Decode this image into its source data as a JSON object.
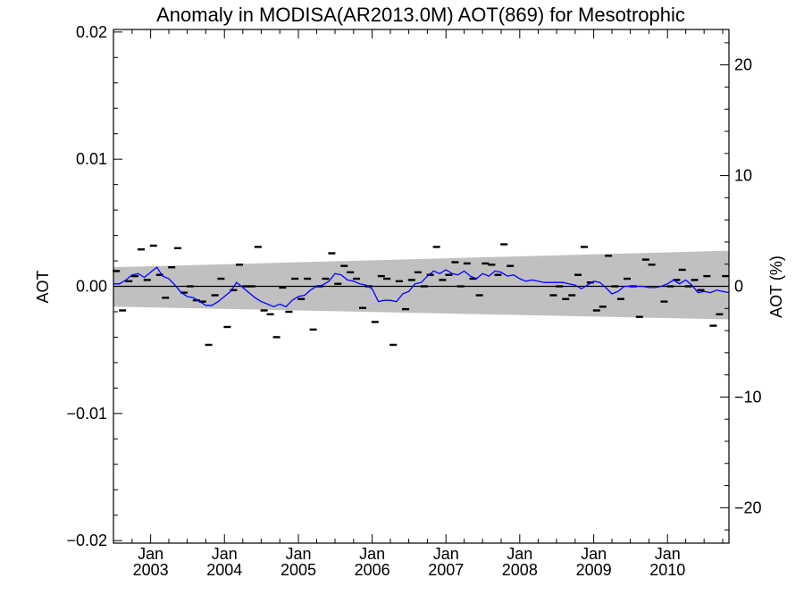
{
  "chart_data": {
    "type": "scatter",
    "title": "Anomaly in MODISA(AR2013.0M) AOT(869) for Mesotrophic",
    "ylabel": "AOT",
    "ylabel_right": "AOT (%)",
    "xlim": [
      "2002-07-01",
      "2010-11-01"
    ],
    "ylim": [
      -0.0202,
      0.0202
    ],
    "ylim_right": [
      -23.2,
      23.2
    ],
    "yticks": [
      {
        "value": 0.02,
        "label": "0.02"
      },
      {
        "value": 0.01,
        "label": "0.01"
      },
      {
        "value": 0.0,
        "label": "0.00"
      },
      {
        "value": -0.01,
        "label": "−0.01"
      },
      {
        "value": -0.02,
        "label": "−0.02"
      }
    ],
    "yticks_right": [
      {
        "value": 20,
        "label": "20"
      },
      {
        "value": 10,
        "label": "10"
      },
      {
        "value": 0,
        "label": "0"
      },
      {
        "value": -10,
        "label": "−10"
      },
      {
        "value": -20,
        "label": "−20"
      }
    ],
    "xticks": [
      {
        "date": "2003-01-01",
        "month": "Jan",
        "year": "2003"
      },
      {
        "date": "2004-01-01",
        "month": "Jan",
        "year": "2004"
      },
      {
        "date": "2005-01-01",
        "month": "Jan",
        "year": "2005"
      },
      {
        "date": "2006-01-01",
        "month": "Jan",
        "year": "2006"
      },
      {
        "date": "2007-01-01",
        "month": "Jan",
        "year": "2007"
      },
      {
        "date": "2008-01-01",
        "month": "Jan",
        "year": "2008"
      },
      {
        "date": "2009-01-01",
        "month": "Jan",
        "year": "2009"
      },
      {
        "date": "2010-01-01",
        "month": "Jan",
        "year": "2010"
      }
    ],
    "band": {
      "color": "#c0c0c0",
      "start": {
        "date": "2002-07-01",
        "upper": 0.0015,
        "lower": -0.0016
      },
      "end": {
        "date": "2010-11-01",
        "upper": 0.0028,
        "lower": -0.0026
      }
    },
    "zero_line": {
      "value": 0.0,
      "color": "#000000"
    },
    "series": [
      {
        "kind": "points",
        "color": "#000000",
        "points": [
          {
            "x": "2002-07-15",
            "y": 0.0012
          },
          {
            "x": "2002-08-15",
            "y": -0.0019
          },
          {
            "x": "2002-09-15",
            "y": 0.0004
          },
          {
            "x": "2002-10-15",
            "y": 0.0008
          },
          {
            "x": "2002-11-15",
            "y": 0.0029
          },
          {
            "x": "2002-12-15",
            "y": 0.0005
          },
          {
            "x": "2003-01-15",
            "y": 0.0032
          },
          {
            "x": "2003-02-15",
            "y": 0.0009
          },
          {
            "x": "2003-03-15",
            "y": -0.0009
          },
          {
            "x": "2003-04-15",
            "y": 0.0015
          },
          {
            "x": "2003-05-15",
            "y": 0.003
          },
          {
            "x": "2003-06-15",
            "y": -0.0005
          },
          {
            "x": "2003-07-15",
            "y": 0.0
          },
          {
            "x": "2003-08-15",
            "y": -0.0011
          },
          {
            "x": "2003-09-15",
            "y": -0.0012
          },
          {
            "x": "2003-10-15",
            "y": -0.0046
          },
          {
            "x": "2003-11-15",
            "y": -0.0007
          },
          {
            "x": "2003-12-15",
            "y": 0.0006
          },
          {
            "x": "2004-01-15",
            "y": -0.0032
          },
          {
            "x": "2004-02-15",
            "y": -0.0003
          },
          {
            "x": "2004-03-15",
            "y": 0.0017
          },
          {
            "x": "2004-04-15",
            "y": 0.0
          },
          {
            "x": "2004-05-15",
            "y": 0.0
          },
          {
            "x": "2004-06-15",
            "y": 0.0031
          },
          {
            "x": "2004-07-15",
            "y": -0.0019
          },
          {
            "x": "2004-08-15",
            "y": -0.0022
          },
          {
            "x": "2004-09-15",
            "y": -0.004
          },
          {
            "x": "2004-10-15",
            "y": -0.0001
          },
          {
            "x": "2004-11-15",
            "y": -0.002
          },
          {
            "x": "2004-12-15",
            "y": 0.0006
          },
          {
            "x": "2005-01-15",
            "y": -0.001
          },
          {
            "x": "2005-02-15",
            "y": 0.0006
          },
          {
            "x": "2005-03-15",
            "y": -0.0034
          },
          {
            "x": "2005-04-15",
            "y": 0.0
          },
          {
            "x": "2005-05-15",
            "y": 0.0006
          },
          {
            "x": "2005-06-15",
            "y": 0.0026
          },
          {
            "x": "2005-07-15",
            "y": 0.0002
          },
          {
            "x": "2005-08-15",
            "y": 0.0016
          },
          {
            "x": "2005-09-15",
            "y": 0.0011
          },
          {
            "x": "2005-10-15",
            "y": 0.0006
          },
          {
            "x": "2005-11-15",
            "y": -0.0017
          },
          {
            "x": "2005-12-15",
            "y": 0.0
          },
          {
            "x": "2006-01-15",
            "y": -0.0028
          },
          {
            "x": "2006-02-15",
            "y": 0.0008
          },
          {
            "x": "2006-03-15",
            "y": 0.0006
          },
          {
            "x": "2006-04-15",
            "y": -0.0046
          },
          {
            "x": "2006-05-15",
            "y": 0.0004
          },
          {
            "x": "2006-06-15",
            "y": -0.0018
          },
          {
            "x": "2006-07-15",
            "y": 0.0005
          },
          {
            "x": "2006-08-15",
            "y": 0.0011
          },
          {
            "x": "2006-09-15",
            "y": 0.0
          },
          {
            "x": "2006-10-15",
            "y": 0.0009
          },
          {
            "x": "2006-11-15",
            "y": 0.0031
          },
          {
            "x": "2006-12-15",
            "y": 0.0005
          },
          {
            "x": "2007-01-15",
            "y": 0.0009
          },
          {
            "x": "2007-02-15",
            "y": 0.0019
          },
          {
            "x": "2007-03-15",
            "y": 0.0
          },
          {
            "x": "2007-04-15",
            "y": 0.0018
          },
          {
            "x": "2007-05-15",
            "y": 0.0006
          },
          {
            "x": "2007-06-15",
            "y": -0.0007
          },
          {
            "x": "2007-07-15",
            "y": 0.0018
          },
          {
            "x": "2007-08-15",
            "y": 0.0017
          },
          {
            "x": "2007-09-15",
            "y": 0.0009
          },
          {
            "x": "2007-10-15",
            "y": 0.0033
          },
          {
            "x": "2007-11-15",
            "y": 0.0016
          },
          {
            "x": "2008-06-15",
            "y": -0.0007
          },
          {
            "x": "2008-07-15",
            "y": 0.0
          },
          {
            "x": "2008-08-15",
            "y": -0.001
          },
          {
            "x": "2008-09-15",
            "y": -0.0007
          },
          {
            "x": "2008-10-15",
            "y": 0.0009
          },
          {
            "x": "2008-11-15",
            "y": 0.0031
          },
          {
            "x": "2008-12-15",
            "y": 0.0003
          },
          {
            "x": "2009-01-15",
            "y": -0.0019
          },
          {
            "x": "2009-02-15",
            "y": -0.0016
          },
          {
            "x": "2009-03-15",
            "y": 0.0024
          },
          {
            "x": "2009-04-15",
            "y": 0.0
          },
          {
            "x": "2009-05-15",
            "y": -0.001
          },
          {
            "x": "2009-06-15",
            "y": 0.0006
          },
          {
            "x": "2009-07-15",
            "y": 0.0
          },
          {
            "x": "2009-08-15",
            "y": -0.0024
          },
          {
            "x": "2009-09-15",
            "y": 0.0021
          },
          {
            "x": "2009-10-15",
            "y": 0.0017
          },
          {
            "x": "2009-12-15",
            "y": -0.0012
          },
          {
            "x": "2010-01-15",
            "y": 0.0
          },
          {
            "x": "2010-02-15",
            "y": 0.0005
          },
          {
            "x": "2010-03-15",
            "y": 0.0013
          },
          {
            "x": "2010-04-15",
            "y": 0.0
          },
          {
            "x": "2010-05-15",
            "y": 0.0005
          },
          {
            "x": "2010-06-15",
            "y": -0.0003
          },
          {
            "x": "2010-07-15",
            "y": 0.0008
          },
          {
            "x": "2010-08-15",
            "y": -0.0031
          },
          {
            "x": "2010-09-15",
            "y": -0.0022
          },
          {
            "x": "2010-10-15",
            "y": 0.0008
          }
        ]
      },
      {
        "kind": "line",
        "color": "#0000ff",
        "points": [
          {
            "x": "2002-07-01",
            "y": 0.0002
          },
          {
            "x": "2002-08-01",
            "y": 0.0002
          },
          {
            "x": "2002-09-01",
            "y": 0.0005
          },
          {
            "x": "2002-10-01",
            "y": 0.0009
          },
          {
            "x": "2002-11-01",
            "y": 0.001
          },
          {
            "x": "2002-12-01",
            "y": 0.0007
          },
          {
            "x": "2003-01-01",
            "y": 0.0011
          },
          {
            "x": "2003-02-01",
            "y": 0.0015
          },
          {
            "x": "2003-03-01",
            "y": 0.0008
          },
          {
            "x": "2003-04-01",
            "y": 0.0006
          },
          {
            "x": "2003-05-01",
            "y": 0.0001
          },
          {
            "x": "2003-06-01",
            "y": -0.0005
          },
          {
            "x": "2003-07-01",
            "y": -0.0008
          },
          {
            "x": "2003-08-01",
            "y": -0.0009
          },
          {
            "x": "2003-09-01",
            "y": -0.0012
          },
          {
            "x": "2003-10-01",
            "y": -0.0015
          },
          {
            "x": "2003-11-01",
            "y": -0.0015
          },
          {
            "x": "2003-12-01",
            "y": -0.0012
          },
          {
            "x": "2004-01-01",
            "y": -0.0008
          },
          {
            "x": "2004-02-01",
            "y": -0.0004
          },
          {
            "x": "2004-03-01",
            "y": 0.0003
          },
          {
            "x": "2004-04-01",
            "y": -0.0001
          },
          {
            "x": "2004-05-01",
            "y": -0.0005
          },
          {
            "x": "2004-06-01",
            "y": -0.0009
          },
          {
            "x": "2004-07-01",
            "y": -0.0012
          },
          {
            "x": "2004-08-01",
            "y": -0.0014
          },
          {
            "x": "2004-09-01",
            "y": -0.0016
          },
          {
            "x": "2004-10-01",
            "y": -0.0014
          },
          {
            "x": "2004-11-01",
            "y": -0.0016
          },
          {
            "x": "2004-12-01",
            "y": -0.0011
          },
          {
            "x": "2005-01-01",
            "y": -0.0008
          },
          {
            "x": "2005-02-01",
            "y": -0.0007
          },
          {
            "x": "2005-03-01",
            "y": -0.0003
          },
          {
            "x": "2005-04-01",
            "y": 0.0
          },
          {
            "x": "2005-05-01",
            "y": 0.0001
          },
          {
            "x": "2005-06-01",
            "y": 0.0004
          },
          {
            "x": "2005-07-01",
            "y": 0.001
          },
          {
            "x": "2005-08-01",
            "y": 0.0009
          },
          {
            "x": "2005-09-01",
            "y": 0.0005
          },
          {
            "x": "2005-10-01",
            "y": 0.0004
          },
          {
            "x": "2005-11-01",
            "y": 0.0002
          },
          {
            "x": "2005-12-01",
            "y": 0.0001
          },
          {
            "x": "2006-01-01",
            "y": -0.0002
          },
          {
            "x": "2006-02-01",
            "y": -0.0012
          },
          {
            "x": "2006-03-01",
            "y": -0.0011
          },
          {
            "x": "2006-04-01",
            "y": -0.0011
          },
          {
            "x": "2006-05-01",
            "y": -0.0012
          },
          {
            "x": "2006-06-01",
            "y": -0.0006
          },
          {
            "x": "2006-07-01",
            "y": -0.0004
          },
          {
            "x": "2006-08-01",
            "y": 0.0002
          },
          {
            "x": "2006-09-01",
            "y": 0.0003
          },
          {
            "x": "2006-10-01",
            "y": 0.0008
          },
          {
            "x": "2006-11-01",
            "y": 0.0012
          },
          {
            "x": "2006-12-01",
            "y": 0.001
          },
          {
            "x": "2007-01-01",
            "y": 0.0013
          },
          {
            "x": "2007-02-01",
            "y": 0.001
          },
          {
            "x": "2007-03-01",
            "y": 0.0009
          },
          {
            "x": "2007-04-01",
            "y": 0.0012
          },
          {
            "x": "2007-05-01",
            "y": 0.0008
          },
          {
            "x": "2007-06-01",
            "y": 0.0006
          },
          {
            "x": "2007-07-01",
            "y": 0.001
          },
          {
            "x": "2007-08-01",
            "y": 0.0008
          },
          {
            "x": "2007-09-01",
            "y": 0.0012
          },
          {
            "x": "2007-10-01",
            "y": 0.0011
          },
          {
            "x": "2007-11-01",
            "y": 0.0008
          },
          {
            "x": "2007-12-01",
            "y": 0.0009
          },
          {
            "x": "2008-01-01",
            "y": 0.0006
          },
          {
            "x": "2008-02-01",
            "y": 0.0004
          },
          {
            "x": "2008-03-01",
            "y": 0.0005
          },
          {
            "x": "2008-04-01",
            "y": 0.0004
          },
          {
            "x": "2008-05-01",
            "y": 0.0003
          },
          {
            "x": "2008-06-01",
            "y": 0.0003
          },
          {
            "x": "2008-07-01",
            "y": 0.0003
          },
          {
            "x": "2008-08-01",
            "y": 0.0003
          },
          {
            "x": "2008-09-01",
            "y": 0.0002
          },
          {
            "x": "2008-10-01",
            "y": 0.0001
          },
          {
            "x": "2008-11-01",
            "y": -0.0002
          },
          {
            "x": "2008-12-01",
            "y": 0.0001
          },
          {
            "x": "2009-01-01",
            "y": 0.0004
          },
          {
            "x": "2009-02-01",
            "y": 0.0003
          },
          {
            "x": "2009-03-01",
            "y": -0.0001
          },
          {
            "x": "2009-04-01",
            "y": -0.0006
          },
          {
            "x": "2009-05-01",
            "y": -0.0004
          },
          {
            "x": "2009-06-01",
            "y": 0.0
          },
          {
            "x": "2009-07-01",
            "y": 0.0
          },
          {
            "x": "2009-08-01",
            "y": 0.0
          },
          {
            "x": "2009-09-01",
            "y": 0.0
          },
          {
            "x": "2009-10-01",
            "y": -0.0001
          },
          {
            "x": "2009-11-01",
            "y": -0.0001
          },
          {
            "x": "2009-12-01",
            "y": 0.0
          },
          {
            "x": "2010-01-01",
            "y": 0.0002
          },
          {
            "x": "2010-02-01",
            "y": 0.0005
          },
          {
            "x": "2010-03-01",
            "y": 0.0002
          },
          {
            "x": "2010-04-01",
            "y": 0.0005
          },
          {
            "x": "2010-05-01",
            "y": 0.0001
          },
          {
            "x": "2010-06-01",
            "y": -0.0005
          },
          {
            "x": "2010-07-01",
            "y": -0.0004
          },
          {
            "x": "2010-08-01",
            "y": -0.0005
          },
          {
            "x": "2010-09-01",
            "y": -0.0003
          },
          {
            "x": "2010-10-01",
            "y": -0.0004
          },
          {
            "x": "2010-11-01",
            "y": -0.0005
          }
        ]
      }
    ]
  }
}
